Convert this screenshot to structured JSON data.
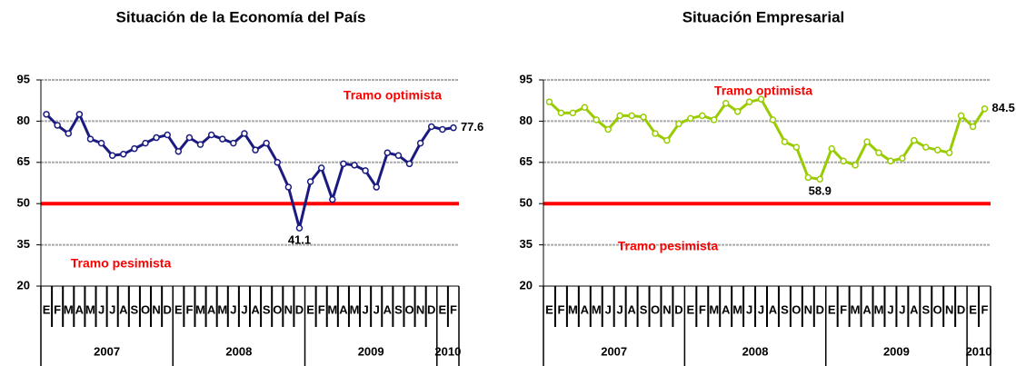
{
  "chart_data": [
    {
      "type": "line",
      "title": "Situación de la Economía del País",
      "categories": [
        "E",
        "F",
        "M",
        "A",
        "M",
        "J",
        "J",
        "A",
        "S",
        "O",
        "N",
        "D",
        "E",
        "F",
        "M",
        "A",
        "M",
        "J",
        "J",
        "A",
        "S",
        "O",
        "N",
        "D",
        "E",
        "F",
        "M",
        "A",
        "M",
        "J",
        "J",
        "A",
        "S",
        "O",
        "N",
        "D",
        "E",
        "F"
      ],
      "years": [
        "2007",
        "2008",
        "2009",
        "2010"
      ],
      "series": [
        {
          "name": "Situación de la Economía del País",
          "color": "#1a1a80",
          "values": [
            82.5,
            78.5,
            75.5,
            82.5,
            73.5,
            72,
            67.5,
            68,
            70,
            72,
            74,
            75,
            69,
            74,
            71.5,
            75,
            73.5,
            72,
            75.5,
            69.5,
            72,
            65,
            56,
            41.1,
            58,
            63,
            51.5,
            64.5,
            64,
            62,
            56,
            68.5,
            67.5,
            64.5,
            72,
            78,
            77,
            77.6
          ],
          "value_labels": [
            null,
            null,
            null,
            null,
            null,
            null,
            null,
            null,
            null,
            null,
            null,
            null,
            null,
            null,
            null,
            null,
            null,
            null,
            null,
            null,
            null,
            null,
            null,
            "41.1",
            null,
            null,
            null,
            null,
            null,
            null,
            null,
            null,
            null,
            null,
            null,
            null,
            null,
            "77.6"
          ]
        }
      ],
      "threshold": 50,
      "threshold_color": "#ff0000",
      "optimist_label": "Tramo optimista",
      "pessimist_label": "Tramo pesimista",
      "ylim": [
        20,
        95
      ],
      "yticks": [
        20,
        35,
        50,
        65,
        80,
        95
      ],
      "grid": true
    },
    {
      "type": "line",
      "title": "Situación Empresarial",
      "categories": [
        "E",
        "F",
        "M",
        "A",
        "M",
        "J",
        "J",
        "A",
        "S",
        "O",
        "N",
        "D",
        "E",
        "F",
        "M",
        "A",
        "M",
        "J",
        "J",
        "A",
        "S",
        "O",
        "N",
        "D",
        "E",
        "F",
        "M",
        "A",
        "M",
        "J",
        "J",
        "A",
        "S",
        "O",
        "N",
        "D",
        "E",
        "F"
      ],
      "years": [
        "2007",
        "2008",
        "2009",
        "2010"
      ],
      "series": [
        {
          "name": "Situación Empresarial",
          "color": "#99cc00",
          "values": [
            87,
            83,
            83,
            85,
            80.5,
            77,
            82,
            82,
            81.5,
            75.5,
            73,
            79,
            81,
            82,
            80.5,
            86.5,
            83.5,
            87,
            88,
            80.5,
            72.5,
            70.5,
            59.5,
            58.9,
            70,
            65.5,
            64,
            72.5,
            68.5,
            65.5,
            66.5,
            73,
            70.5,
            69.5,
            68.5,
            82,
            78,
            84.5
          ],
          "value_labels": [
            null,
            null,
            null,
            null,
            null,
            null,
            null,
            null,
            null,
            null,
            null,
            null,
            null,
            null,
            null,
            null,
            null,
            null,
            null,
            null,
            null,
            null,
            null,
            "58.9",
            null,
            null,
            null,
            null,
            null,
            null,
            null,
            null,
            null,
            null,
            null,
            null,
            null,
            "84.5"
          ]
        }
      ],
      "threshold": 50,
      "threshold_color": "#ff0000",
      "optimist_label": "Tramo optimista",
      "pessimist_label": "Tramo pesimista",
      "ylim": [
        20,
        95
      ],
      "yticks": [
        20,
        35,
        50,
        65,
        80,
        95
      ],
      "grid": true
    }
  ]
}
